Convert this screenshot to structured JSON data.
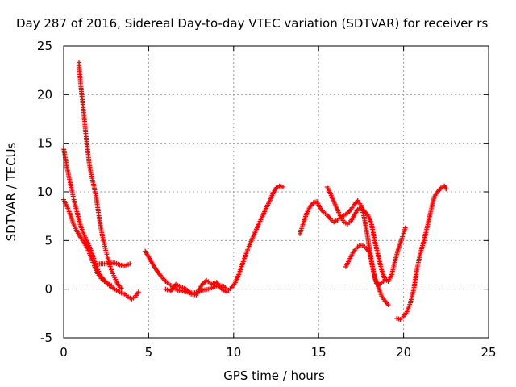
{
  "chart_data": {
    "type": "scatter",
    "title": "Day 287 of 2016, Sidereal Day-to-day VTEC variation (SDTVAR) for receiver rs",
    "xlabel": "GPS time / hours",
    "ylabel": "SDTVAR / TECUs",
    "xlim": [
      0,
      25
    ],
    "ylim": [
      -5,
      25
    ],
    "xticks": [
      "0",
      "5",
      "10",
      "15",
      "20",
      "25"
    ],
    "yticks": [
      "-5",
      "0",
      "5",
      "10",
      "15",
      "20",
      "25"
    ],
    "grid": true,
    "marker": "+",
    "color": "#ff0000",
    "series": [
      {
        "points": [
          [
            0.0,
            14.5
          ],
          [
            0.2,
            12.5
          ],
          [
            0.4,
            10.8
          ],
          [
            0.6,
            9.2
          ],
          [
            0.8,
            7.8
          ],
          [
            1.0,
            6.5
          ],
          [
            1.2,
            5.6
          ],
          [
            1.4,
            4.8
          ],
          [
            1.6,
            4.0
          ],
          [
            1.8,
            3.0
          ],
          [
            2.0,
            2.0
          ],
          [
            2.2,
            1.3
          ],
          [
            2.4,
            0.9
          ],
          [
            2.6,
            0.5
          ],
          [
            2.8,
            0.2
          ],
          [
            3.0,
            0.0
          ],
          [
            3.2,
            -0.2
          ],
          [
            3.4,
            -0.4
          ],
          [
            3.6,
            -0.5
          ],
          [
            3.8,
            -0.8
          ],
          [
            4.0,
            -1.0
          ],
          [
            4.2,
            -0.8
          ],
          [
            4.4,
            -0.3
          ]
        ]
      },
      {
        "points": [
          [
            0.0,
            9.2
          ],
          [
            0.2,
            8.5
          ],
          [
            0.4,
            7.6
          ],
          [
            0.6,
            6.6
          ],
          [
            0.8,
            5.9
          ],
          [
            1.0,
            5.3
          ],
          [
            1.2,
            4.8
          ],
          [
            1.4,
            4.2
          ],
          [
            1.6,
            3.3
          ],
          [
            1.8,
            2.4
          ],
          [
            2.0,
            1.6
          ],
          [
            2.2,
            1.1
          ],
          [
            2.4,
            0.8
          ],
          [
            2.6,
            0.6
          ],
          [
            2.8,
            0.4
          ]
        ]
      },
      {
        "points": [
          [
            0.9,
            23.3
          ],
          [
            1.0,
            21.0
          ],
          [
            1.1,
            19.5
          ],
          [
            1.2,
            17.8
          ],
          [
            1.3,
            16.0
          ],
          [
            1.4,
            14.5
          ],
          [
            1.5,
            13.0
          ],
          [
            1.6,
            12.0
          ],
          [
            1.7,
            11.2
          ],
          [
            1.8,
            10.4
          ],
          [
            1.9,
            9.6
          ],
          [
            2.0,
            8.4
          ],
          [
            2.1,
            7.2
          ],
          [
            2.2,
            6.2
          ],
          [
            2.3,
            5.3
          ],
          [
            2.4,
            4.6
          ],
          [
            2.5,
            3.8
          ],
          [
            2.6,
            3.2
          ],
          [
            2.7,
            2.5
          ],
          [
            2.8,
            2.0
          ],
          [
            2.9,
            1.6
          ],
          [
            3.0,
            1.2
          ],
          [
            3.1,
            0.8
          ],
          [
            3.2,
            0.5
          ],
          [
            3.3,
            0.2
          ],
          [
            3.4,
            0.1
          ]
        ]
      },
      {
        "points": [
          [
            2.1,
            2.6
          ],
          [
            2.4,
            2.6
          ],
          [
            2.7,
            2.7
          ],
          [
            3.0,
            2.7
          ],
          [
            3.3,
            2.5
          ],
          [
            3.6,
            2.4
          ],
          [
            3.9,
            2.6
          ]
        ]
      },
      {
        "points": [
          [
            4.8,
            3.9
          ],
          [
            5.1,
            3.0
          ],
          [
            5.4,
            2.1
          ],
          [
            5.7,
            1.4
          ],
          [
            6.0,
            0.8
          ],
          [
            6.3,
            0.4
          ],
          [
            6.5,
            0.1
          ],
          [
            6.7,
            -0.1
          ],
          [
            7.0,
            -0.2
          ],
          [
            7.3,
            -0.3
          ],
          [
            7.6,
            -0.4
          ],
          [
            7.9,
            -0.3
          ],
          [
            8.2,
            -0.1
          ],
          [
            8.5,
            0.0
          ],
          [
            8.8,
            0.2
          ],
          [
            9.1,
            0.4
          ],
          [
            9.4,
            0.3
          ],
          [
            9.7,
            -0.1
          ],
          [
            9.9,
            0.2
          ],
          [
            10.1,
            0.7
          ],
          [
            10.3,
            1.5
          ],
          [
            10.5,
            2.5
          ],
          [
            10.7,
            3.5
          ],
          [
            10.9,
            4.4
          ],
          [
            11.1,
            5.2
          ],
          [
            11.3,
            6.0
          ],
          [
            11.5,
            6.8
          ],
          [
            11.7,
            7.5
          ],
          [
            11.9,
            8.3
          ],
          [
            12.1,
            9.0
          ],
          [
            12.3,
            9.8
          ],
          [
            12.5,
            10.4
          ],
          [
            12.7,
            10.6
          ],
          [
            12.9,
            10.5
          ]
        ]
      },
      {
        "points": [
          [
            6.0,
            0.0
          ],
          [
            6.3,
            -0.2
          ],
          [
            6.6,
            0.5
          ],
          [
            6.9,
            0.2
          ],
          [
            7.2,
            0.0
          ],
          [
            7.5,
            -0.5
          ],
          [
            7.8,
            -0.6
          ],
          [
            8.1,
            0.4
          ],
          [
            8.4,
            0.9
          ],
          [
            8.7,
            0.5
          ],
          [
            9.0,
            0.7
          ],
          [
            9.3,
            0.0
          ],
          [
            9.6,
            -0.3
          ]
        ]
      },
      {
        "points": [
          [
            13.9,
            5.7
          ],
          [
            14.1,
            6.8
          ],
          [
            14.3,
            7.8
          ],
          [
            14.5,
            8.5
          ],
          [
            14.7,
            8.9
          ],
          [
            14.9,
            9.0
          ],
          [
            15.1,
            8.3
          ],
          [
            15.3,
            7.9
          ],
          [
            15.5,
            7.6
          ],
          [
            15.7,
            7.2
          ],
          [
            15.9,
            6.9
          ],
          [
            16.1,
            7.1
          ],
          [
            16.3,
            7.4
          ],
          [
            16.5,
            7.6
          ],
          [
            16.7,
            7.8
          ],
          [
            16.9,
            8.2
          ],
          [
            17.1,
            8.7
          ],
          [
            17.3,
            9.1
          ],
          [
            17.5,
            8.6
          ],
          [
            17.7,
            7.2
          ],
          [
            17.9,
            5.2
          ],
          [
            18.1,
            3.0
          ],
          [
            18.3,
            1.2
          ],
          [
            18.5,
            0.3
          ],
          [
            18.7,
            -0.7
          ],
          [
            18.9,
            -1.2
          ],
          [
            19.1,
            -1.6
          ]
        ]
      },
      {
        "points": [
          [
            15.5,
            10.5
          ],
          [
            15.7,
            9.8
          ],
          [
            15.9,
            9.0
          ],
          [
            16.1,
            8.2
          ],
          [
            16.3,
            7.4
          ],
          [
            16.5,
            6.9
          ],
          [
            16.7,
            6.7
          ],
          [
            16.9,
            7.0
          ],
          [
            17.1,
            7.6
          ],
          [
            17.3,
            8.2
          ],
          [
            17.5,
            8.4
          ],
          [
            17.7,
            8.0
          ],
          [
            17.9,
            7.6
          ],
          [
            18.1,
            6.8
          ],
          [
            18.3,
            5.0
          ],
          [
            18.5,
            3.5
          ],
          [
            18.7,
            2.0
          ],
          [
            18.9,
            1.0
          ],
          [
            19.1,
            0.8
          ],
          [
            19.3,
            1.5
          ],
          [
            19.5,
            2.9
          ],
          [
            19.7,
            4.2
          ],
          [
            19.9,
            5.2
          ],
          [
            20.1,
            6.3
          ]
        ]
      },
      {
        "points": [
          [
            16.6,
            2.3
          ],
          [
            16.8,
            3.0
          ],
          [
            17.0,
            3.7
          ],
          [
            17.2,
            4.2
          ],
          [
            17.4,
            4.5
          ],
          [
            17.6,
            4.5
          ],
          [
            17.8,
            4.2
          ],
          [
            18.0,
            3.8
          ],
          [
            18.2,
            2.0
          ],
          [
            18.4,
            0.6
          ],
          [
            18.6,
            0.5
          ],
          [
            18.8,
            0.8
          ],
          [
            19.0,
            1.0
          ]
        ]
      },
      {
        "points": [
          [
            19.6,
            -3.0
          ],
          [
            19.8,
            -3.1
          ],
          [
            20.0,
            -2.8
          ],
          [
            20.2,
            -2.3
          ],
          [
            20.4,
            -1.4
          ],
          [
            20.6,
            0.0
          ],
          [
            20.8,
            2.2
          ],
          [
            21.0,
            3.8
          ],
          [
            21.2,
            5.0
          ],
          [
            21.4,
            6.5
          ],
          [
            21.6,
            8.0
          ],
          [
            21.8,
            9.5
          ],
          [
            22.0,
            10.0
          ],
          [
            22.2,
            10.4
          ],
          [
            22.4,
            10.6
          ],
          [
            22.5,
            10.3
          ]
        ]
      }
    ]
  }
}
